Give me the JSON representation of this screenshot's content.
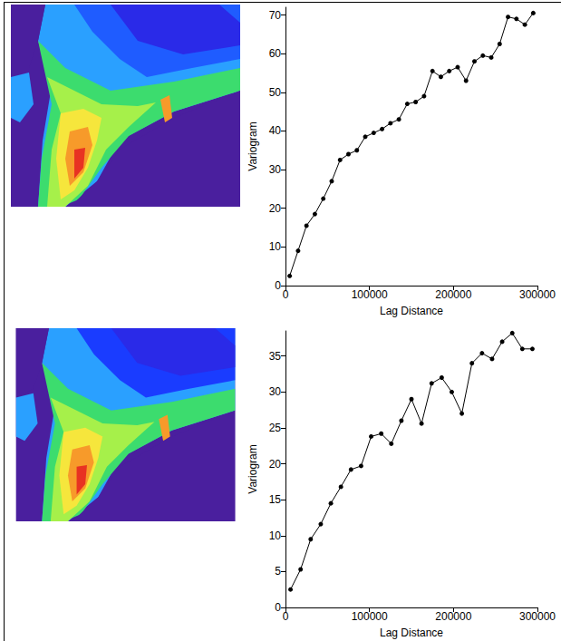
{
  "chart_data": [
    {
      "type": "line",
      "x_label": "Lag Distance",
      "y_label": "Variogram",
      "x": [
        5000,
        15000,
        25000,
        35000,
        45000,
        55000,
        65000,
        75000,
        85000,
        95000,
        105000,
        115000,
        125000,
        135000,
        145000,
        155000,
        165000,
        175000,
        185000,
        195000,
        205000,
        215000,
        225000,
        235000,
        245000,
        255000,
        265000,
        275000,
        285000,
        295000
      ],
      "values": [
        2.5,
        9,
        15.5,
        18.5,
        22.5,
        27,
        32.5,
        34,
        35,
        38.5,
        39.5,
        40.5,
        42,
        43,
        47,
        47.5,
        49,
        55.5,
        54,
        55.5,
        56.5,
        53,
        58,
        59.5,
        59,
        62.5,
        69.5,
        69,
        67.5,
        70.5
      ],
      "color": "#000000",
      "marker": "circle",
      "line_style": "solid",
      "grid": false,
      "xlim": [
        0,
        300000
      ],
      "xticks": [
        0,
        100000,
        200000,
        300000
      ],
      "ylim": [
        0,
        72
      ],
      "yticks": [
        0,
        10,
        20,
        30,
        40,
        50,
        60,
        70
      ]
    },
    {
      "type": "line",
      "x_label": "Lag Distance",
      "y_label": "Variogram",
      "x": [
        6000,
        18000,
        30000,
        42000,
        54000,
        66000,
        78000,
        90000,
        102000,
        114000,
        126000,
        138000,
        150000,
        162000,
        174000,
        186000,
        198000,
        210000,
        222000,
        234000,
        246000,
        258000,
        270000,
        282000,
        294000
      ],
      "values": [
        2.5,
        5.3,
        9.5,
        11.6,
        14.5,
        16.8,
        19.2,
        19.7,
        23.8,
        24.2,
        22.8,
        26,
        29,
        25.6,
        31.2,
        32,
        30,
        27,
        34,
        35.4,
        34.6,
        37,
        38.2,
        36,
        36
      ],
      "color": "#000000",
      "marker": "circle",
      "line_style": "solid",
      "grid": false,
      "xlim": [
        0,
        300000
      ],
      "xticks": [
        0,
        100000,
        200000,
        300000
      ],
      "ylim": [
        0,
        38.5
      ],
      "yticks": [
        0,
        5,
        10,
        15,
        20,
        25,
        30,
        35
      ]
    }
  ]
}
